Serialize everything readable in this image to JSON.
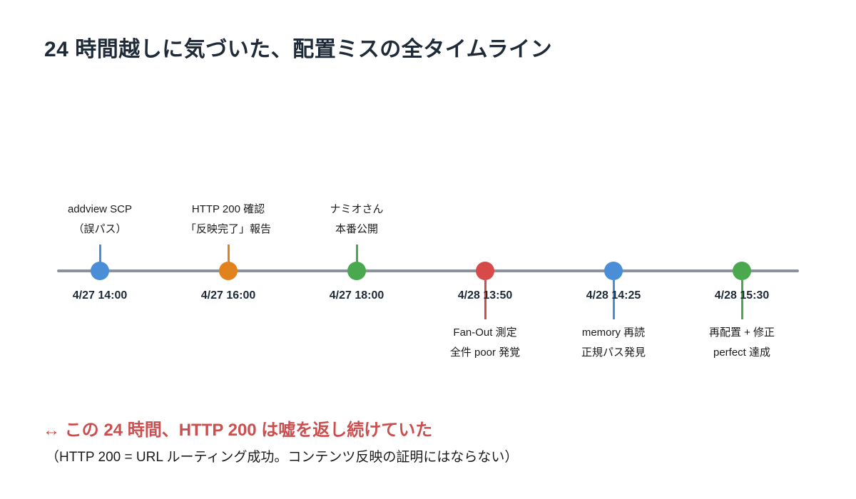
{
  "page": {
    "title": "24 時間越しに気づいた、配置ミスの全タイムライン",
    "background_color": "#ffffff",
    "title_color": "#1f2a38"
  },
  "timeline": {
    "axis_color": "#8a929c",
    "events": [
      {
        "date": "4/27 14:00",
        "label_line1": "addview SCP",
        "label_line2": "（誤パス）",
        "color": "#4a8ed8",
        "label_position": "above"
      },
      {
        "date": "4/27 16:00",
        "label_line1": "HTTP 200 確認",
        "label_line2": "「反映完了」報告",
        "color": "#e2821e",
        "label_position": "above"
      },
      {
        "date": "4/27 18:00",
        "label_line1": "ナミオさん",
        "label_line2": "本番公開",
        "color": "#4aa94e",
        "label_position": "above"
      },
      {
        "date": "4/28 13:50",
        "label_line1": "Fan-Out 測定",
        "label_line2": "全件 poor 発覚",
        "color": "#d84a4a",
        "label_position": "below"
      },
      {
        "date": "4/28 14:25",
        "label_line1": "memory 再読",
        "label_line2": "正規パス発見",
        "color": "#4a8ed8",
        "label_position": "below"
      },
      {
        "date": "4/28 15:30",
        "label_line1": "再配置 + 修正",
        "label_line2": "perfect 達成",
        "color": "#4aa94e",
        "label_position": "below"
      }
    ]
  },
  "footer": {
    "headline": "↔ この 24 時間、HTTP 200 は嘘を返し続けていた",
    "headline_color": "#cc4f4f",
    "note": "（HTTP 200 = URL ルーティング成功。コンテンツ反映の証明にはならない）"
  }
}
